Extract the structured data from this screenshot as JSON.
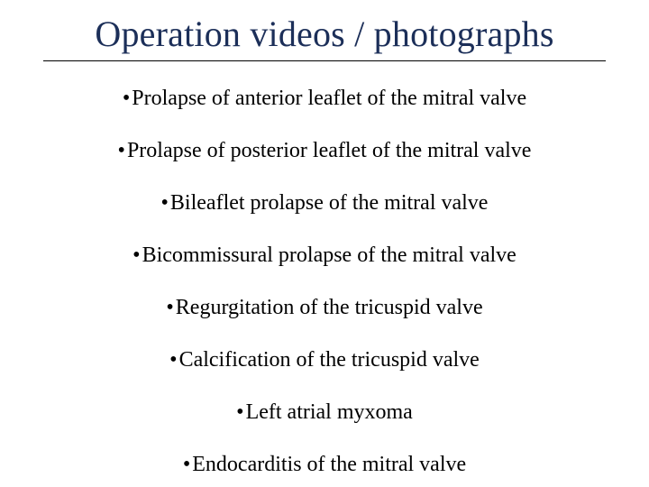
{
  "title": "Operation videos / photographs",
  "title_color": "#1c2f59",
  "background_color": "#ffffff",
  "text_color": "#000000",
  "rule_color": "#000000",
  "items": [
    "Prolapse of anterior leaflet of the mitral valve",
    "Prolapse of posterior leaflet of the mitral valve",
    "Bileaflet prolapse of the mitral valve",
    "Bicommissural prolapse of the mitral valve",
    "Regurgitation of the tricuspid valve",
    "Calcification of the tricuspid valve",
    "Left atrial myxoma",
    "Endocarditis of the mitral valve"
  ]
}
